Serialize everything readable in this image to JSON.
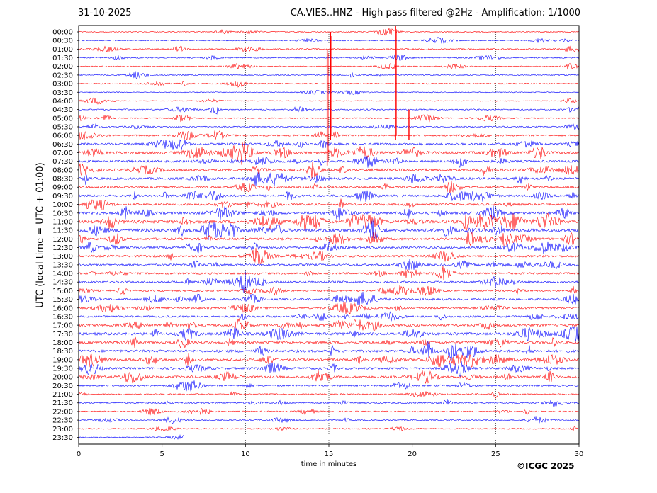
{
  "header": {
    "date": "31-10-2025",
    "title": "CA.VIES..HNZ - High pass filtered @2Hz - Amplification: 1/1000"
  },
  "footer": {
    "copyright": "©ICGC 2025"
  },
  "chart_data": {
    "type": "line",
    "subtype": "helicorder",
    "xlabel": "time in minutes",
    "ylabel": "UTC (local time = UTC + 01:00)",
    "xlim": [
      0,
      30
    ],
    "x_ticks": [
      0,
      5,
      10,
      15,
      20,
      25,
      30
    ],
    "x_tick_labels": [
      "0",
      "5",
      "10",
      "15",
      "20",
      "25",
      "30"
    ],
    "grid": "vertical dotted at 5, 10, 15, 20, 25",
    "row_labels": [
      "00:00",
      "00:30",
      "01:00",
      "01:30",
      "02:00",
      "02:30",
      "03:00",
      "03:30",
      "04:00",
      "04:30",
      "05:00",
      "05:30",
      "06:00",
      "06:30",
      "07:00",
      "07:30",
      "08:00",
      "08:30",
      "09:00",
      "09:30",
      "10:00",
      "10:30",
      "11:00",
      "11:30",
      "12:00",
      "12:30",
      "13:00",
      "13:30",
      "14:00",
      "14:30",
      "15:00",
      "15:30",
      "16:00",
      "16:30",
      "17:00",
      "17:30",
      "18:00",
      "18:30",
      "19:00",
      "19:30",
      "20:00",
      "20:30",
      "21:00",
      "21:30",
      "22:00",
      "22:30",
      "23:00",
      "23:30"
    ],
    "trace_colors": [
      "#ff0000",
      "#0000ff"
    ],
    "amplitude_profile": [
      0.4,
      0.4,
      0.6,
      0.5,
      0.4,
      0.5,
      0.5,
      0.3,
      0.3,
      0.6,
      0.5,
      0.6,
      0.9,
      1.3,
      1.6,
      1.3,
      1.6,
      1.4,
      1.1,
      1.3,
      1.2,
      1.6,
      2.0,
      2.1,
      1.4,
      1.3,
      1.3,
      1.2,
      1.1,
      1.2,
      1.0,
      1.2,
      1.1,
      1.1,
      1.5,
      1.7,
      1.5,
      1.5,
      1.5,
      1.3,
      1.4,
      0.9,
      0.7,
      0.7,
      0.6,
      0.5,
      0.5,
      0.4
    ],
    "recording_end_row": 47,
    "recording_end_minute": 6.3,
    "spikes": [
      {
        "row": 0,
        "minute": 19.0,
        "up_rows": 0.8,
        "down_rows": 12.5
      },
      {
        "row": 2,
        "minute": 14.9,
        "up_rows": 0,
        "down_rows": 13.5
      },
      {
        "row": 3,
        "minute": 15.1,
        "up_rows": 3.0,
        "down_rows": 9.5
      },
      {
        "row": 10,
        "minute": 19.8,
        "up_rows": 1.0,
        "down_rows": 2.5
      }
    ]
  }
}
